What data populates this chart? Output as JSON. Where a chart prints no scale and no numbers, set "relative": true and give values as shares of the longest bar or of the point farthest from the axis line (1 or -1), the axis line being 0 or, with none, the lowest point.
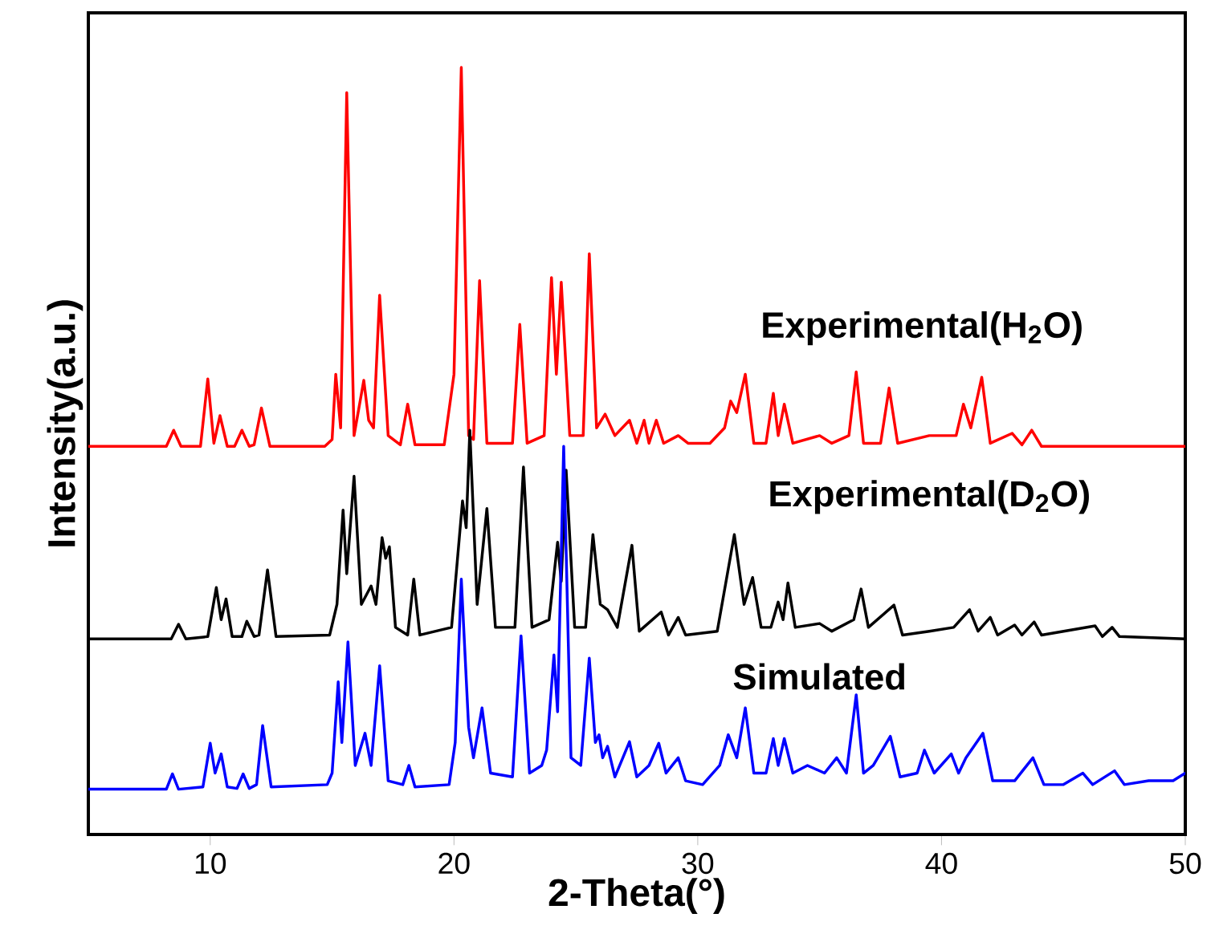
{
  "chart_data": {
    "type": "line",
    "xlabel": "2-Theta(°)",
    "ylabel": "Intensity(a.u.)",
    "relative": true,
    "xlim": [
      5,
      50
    ],
    "xticks": [
      10,
      20,
      30,
      40,
      50
    ],
    "legend": false,
    "grid": false,
    "marker": "none",
    "line_style": "solid",
    "series": [
      {
        "name": "Experimental(H$_{2}$O)",
        "color": "#ff0000",
        "x": [
          5,
          8.2,
          8.5,
          8.8,
          9.6,
          9.9,
          10.15,
          10.4,
          10.7,
          11.0,
          11.3,
          11.6,
          11.8,
          12.1,
          12.45,
          14.7,
          15.0,
          15.15,
          15.35,
          15.6,
          15.9,
          16.3,
          16.5,
          16.7,
          16.95,
          17.3,
          17.8,
          18.1,
          18.4,
          19.6,
          20.0,
          20.3,
          20.6,
          20.8,
          21.05,
          21.35,
          22.4,
          22.7,
          23.0,
          23.7,
          24.0,
          24.2,
          24.4,
          24.75,
          25.3,
          25.55,
          25.85,
          26.2,
          26.6,
          27.2,
          27.5,
          27.8,
          28.0,
          28.3,
          28.6,
          29.2,
          29.6,
          30.5,
          31.1,
          31.35,
          31.6,
          31.95,
          32.3,
          32.8,
          33.1,
          33.3,
          33.55,
          33.9,
          35,
          35.5,
          36.2,
          36.5,
          36.8,
          37.5,
          37.85,
          38.2,
          39.5,
          40.6,
          40.9,
          41.2,
          41.65,
          42.0,
          42.9,
          43.3,
          43.7,
          44.1,
          50
        ],
        "values": [
          0.506,
          0.506,
          0.527,
          0.506,
          0.506,
          0.594,
          0.51,
          0.546,
          0.506,
          0.506,
          0.527,
          0.506,
          0.508,
          0.556,
          0.506,
          0.506,
          0.515,
          0.6,
          0.53,
          0.967,
          0.52,
          0.592,
          0.54,
          0.53,
          0.703,
          0.52,
          0.508,
          0.561,
          0.508,
          0.508,
          0.6,
          1.0,
          0.52,
          0.515,
          0.722,
          0.51,
          0.51,
          0.665,
          0.51,
          0.52,
          0.726,
          0.6,
          0.72,
          0.52,
          0.52,
          0.757,
          0.53,
          0.548,
          0.52,
          0.54,
          0.51,
          0.54,
          0.51,
          0.54,
          0.51,
          0.52,
          0.51,
          0.51,
          0.53,
          0.565,
          0.55,
          0.6,
          0.51,
          0.51,
          0.575,
          0.52,
          0.561,
          0.51,
          0.52,
          0.51,
          0.52,
          0.603,
          0.51,
          0.51,
          0.582,
          0.51,
          0.52,
          0.52,
          0.561,
          0.53,
          0.596,
          0.51,
          0.523,
          0.508,
          0.527,
          0.506,
          0.506
        ]
      },
      {
        "name": "Experimental(D$_{2}$O)",
        "color": "#000000",
        "x": [
          5,
          8.4,
          8.7,
          9.0,
          9.9,
          10.25,
          10.45,
          10.65,
          10.9,
          11.3,
          11.5,
          11.8,
          12.0,
          12.35,
          12.7,
          14.9,
          15.2,
          15.45,
          15.6,
          15.9,
          16.2,
          16.6,
          16.8,
          17.05,
          17.2,
          17.35,
          17.6,
          18.1,
          18.35,
          18.6,
          19.9,
          20.35,
          20.5,
          20.65,
          20.95,
          21.35,
          21.7,
          22.5,
          22.85,
          23.2,
          23.9,
          24.25,
          24.4,
          24.6,
          24.95,
          25.4,
          25.7,
          26.0,
          26.3,
          26.7,
          27.3,
          27.6,
          28.5,
          28.8,
          29.2,
          29.5,
          30.8,
          31.5,
          31.9,
          32.25,
          32.6,
          33.0,
          33.3,
          33.5,
          33.7,
          34.0,
          35,
          35.5,
          36.4,
          36.7,
          37.0,
          38.05,
          38.4,
          39.5,
          40.5,
          41.15,
          41.5,
          42.0,
          42.3,
          43.0,
          43.3,
          43.8,
          44.1,
          46.3,
          46.6,
          47.0,
          47.3,
          50
        ],
        "values": [
          0.255,
          0.255,
          0.274,
          0.255,
          0.258,
          0.322,
          0.28,
          0.307,
          0.258,
          0.258,
          0.278,
          0.258,
          0.26,
          0.345,
          0.258,
          0.26,
          0.3,
          0.423,
          0.34,
          0.467,
          0.3,
          0.324,
          0.3,
          0.387,
          0.36,
          0.375,
          0.27,
          0.26,
          0.333,
          0.26,
          0.27,
          0.435,
          0.4,
          0.527,
          0.3,
          0.425,
          0.27,
          0.27,
          0.479,
          0.27,
          0.28,
          0.381,
          0.33,
          0.475,
          0.27,
          0.27,
          0.391,
          0.3,
          0.293,
          0.27,
          0.377,
          0.265,
          0.29,
          0.26,
          0.283,
          0.26,
          0.265,
          0.391,
          0.3,
          0.335,
          0.27,
          0.27,
          0.303,
          0.28,
          0.328,
          0.27,
          0.275,
          0.265,
          0.28,
          0.32,
          0.27,
          0.299,
          0.26,
          0.265,
          0.27,
          0.293,
          0.265,
          0.283,
          0.26,
          0.273,
          0.26,
          0.277,
          0.26,
          0.272,
          0.258,
          0.27,
          0.258,
          0.255
        ]
      },
      {
        "name": "Simulated",
        "color": "#0000ff",
        "x": [
          5,
          8.2,
          8.45,
          8.7,
          9.7,
          10.0,
          10.2,
          10.45,
          10.7,
          11.1,
          11.35,
          11.6,
          11.9,
          12.15,
          12.5,
          14.8,
          15.0,
          15.25,
          15.4,
          15.65,
          15.95,
          16.35,
          16.6,
          16.95,
          17.3,
          17.9,
          18.15,
          18.4,
          19.8,
          20.05,
          20.3,
          20.6,
          20.8,
          21.15,
          21.5,
          22.4,
          22.75,
          23.1,
          23.6,
          23.8,
          24.1,
          24.25,
          24.5,
          24.8,
          25.2,
          25.55,
          25.8,
          25.95,
          26.1,
          26.3,
          26.6,
          27.2,
          27.5,
          28.0,
          28.4,
          28.7,
          29.2,
          29.5,
          30.2,
          30.9,
          31.25,
          31.6,
          31.95,
          32.3,
          32.8,
          33.1,
          33.3,
          33.55,
          33.9,
          34.5,
          35.2,
          35.7,
          36.1,
          36.5,
          36.8,
          37.2,
          37.9,
          38.3,
          39.0,
          39.3,
          39.7,
          40.4,
          40.7,
          41.0,
          41.7,
          42.1,
          43.0,
          43.75,
          44.2,
          45.0,
          45.8,
          46.2,
          47.1,
          47.5,
          48.5,
          49.5,
          50
        ],
        "values": [
          0.059,
          0.059,
          0.079,
          0.059,
          0.062,
          0.119,
          0.08,
          0.105,
          0.062,
          0.06,
          0.079,
          0.06,
          0.065,
          0.142,
          0.062,
          0.065,
          0.08,
          0.199,
          0.12,
          0.251,
          0.09,
          0.132,
          0.09,
          0.22,
          0.07,
          0.065,
          0.09,
          0.062,
          0.065,
          0.12,
          0.333,
          0.14,
          0.1,
          0.165,
          0.08,
          0.075,
          0.259,
          0.08,
          0.09,
          0.11,
          0.234,
          0.16,
          0.506,
          0.1,
          0.09,
          0.23,
          0.12,
          0.13,
          0.1,
          0.115,
          0.075,
          0.121,
          0.075,
          0.09,
          0.119,
          0.08,
          0.1,
          0.07,
          0.065,
          0.09,
          0.13,
          0.1,
          0.165,
          0.08,
          0.08,
          0.125,
          0.09,
          0.125,
          0.08,
          0.09,
          0.08,
          0.1,
          0.08,
          0.182,
          0.08,
          0.09,
          0.128,
          0.075,
          0.08,
          0.11,
          0.08,
          0.105,
          0.08,
          0.1,
          0.132,
          0.07,
          0.07,
          0.1,
          0.065,
          0.065,
          0.08,
          0.065,
          0.083,
          0.065,
          0.07,
          0.07,
          0.08
        ]
      }
    ]
  }
}
